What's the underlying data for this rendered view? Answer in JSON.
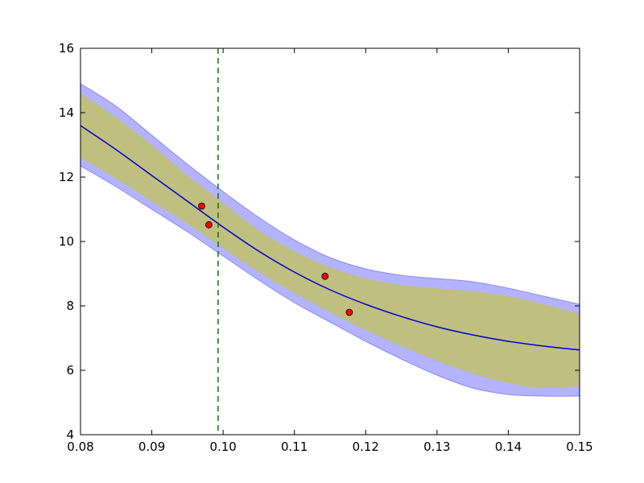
{
  "chart_data": {
    "type": "line",
    "title": "",
    "xlabel": "",
    "ylabel": "",
    "xlim": [
      0.08,
      0.15
    ],
    "ylim": [
      4,
      16
    ],
    "x_ticks": [
      0.08,
      0.09,
      0.1,
      0.11,
      0.12,
      0.13,
      0.14,
      0.15
    ],
    "x_tick_labels": [
      "0.08",
      "0.09",
      "0.10",
      "0.11",
      "0.12",
      "0.13",
      "0.14",
      "0.15"
    ],
    "y_ticks": [
      4,
      6,
      8,
      10,
      12,
      14,
      16
    ],
    "y_tick_labels": [
      "4",
      "6",
      "8",
      "10",
      "12",
      "14",
      "16"
    ],
    "grid": false,
    "legend": "none",
    "mean_curve": {
      "color": "#0000cc",
      "x": [
        0.08,
        0.085,
        0.09,
        0.095,
        0.1,
        0.105,
        0.11,
        0.115,
        0.12,
        0.125,
        0.13,
        0.135,
        0.14,
        0.145,
        0.15
      ],
      "y": [
        13.6,
        12.85,
        12.05,
        11.25,
        10.45,
        9.7,
        9.05,
        8.5,
        8.05,
        7.67,
        7.35,
        7.1,
        6.9,
        6.75,
        6.63
      ]
    },
    "inner_band": {
      "color": "#bfbf80",
      "x": [
        0.08,
        0.085,
        0.09,
        0.095,
        0.1,
        0.105,
        0.11,
        0.115,
        0.12,
        0.125,
        0.13,
        0.135,
        0.14,
        0.145,
        0.15
      ],
      "lower": [
        12.6,
        11.95,
        11.25,
        10.55,
        9.8,
        9.05,
        8.4,
        7.8,
        7.25,
        6.75,
        6.3,
        5.9,
        5.6,
        5.45,
        5.5
      ],
      "upper": [
        14.6,
        13.85,
        13.0,
        12.05,
        11.2,
        10.35,
        9.7,
        9.2,
        8.85,
        8.65,
        8.55,
        8.45,
        8.3,
        8.05,
        7.75
      ]
    },
    "outer_band": {
      "color": "#b3b3ff",
      "x": [
        0.08,
        0.085,
        0.09,
        0.095,
        0.1,
        0.105,
        0.11,
        0.115,
        0.12,
        0.125,
        0.13,
        0.135,
        0.14,
        0.145,
        0.15
      ],
      "lower": [
        12.35,
        11.7,
        11.0,
        10.3,
        9.55,
        8.8,
        8.1,
        7.5,
        6.9,
        6.35,
        5.85,
        5.45,
        5.25,
        5.2,
        5.2
      ],
      "upper": [
        14.9,
        14.2,
        13.3,
        12.4,
        11.55,
        10.75,
        10.05,
        9.5,
        9.15,
        8.95,
        8.85,
        8.75,
        8.55,
        8.3,
        8.05
      ]
    },
    "vertical_line": {
      "x": 0.0993,
      "color": "#008000",
      "style": "dashed"
    },
    "points": {
      "color": "#ff0000",
      "x": [
        0.097,
        0.098,
        0.1143,
        0.1177
      ],
      "y": [
        11.1,
        10.52,
        8.92,
        7.8
      ]
    }
  }
}
